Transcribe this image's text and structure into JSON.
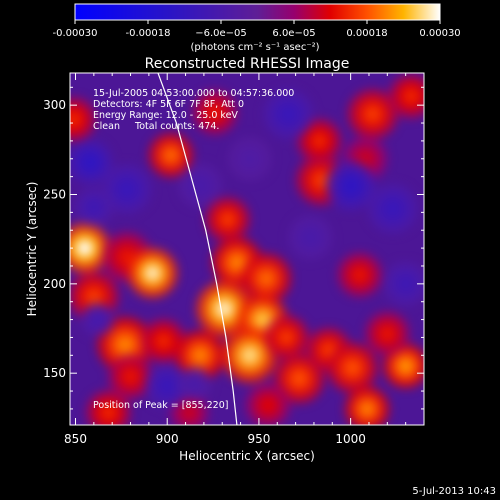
{
  "colorbar": {
    "ticks": [
      "-0.00030",
      "-0.00018",
      "−6.0e−05",
      "6.0e−05",
      "0.00018",
      "0.00030"
    ],
    "range": [
      -0.0003,
      0.0003
    ],
    "unit_label": "(photons cm⁻² s⁻¹ asec⁻²)"
  },
  "chart_data": {
    "type": "heatmap",
    "title": "Reconstructed RHESSI Image",
    "xlabel": "Heliocentric X (arcsec)",
    "ylabel": "Heliocentric Y (arcsec)",
    "xlim": [
      847,
      1040
    ],
    "ylim": [
      121,
      318
    ],
    "x_ticks": [
      850,
      900,
      950,
      1000
    ],
    "y_ticks": [
      150,
      200,
      250,
      300
    ],
    "annotations": [
      "15-Jul-2005 04:53:00.000 to 04:57:36.000",
      "Detectors: 4F 5F 6F 7F 8F, Att 0",
      "Energy Range: 12.0 - 25.0 keV",
      "Clean     Total counts: 474."
    ],
    "peak_label": "Position of Peak = [855,220]",
    "peak": [
      855,
      220
    ],
    "limb_curve": [
      [
        895,
        318
      ],
      [
        905,
        290
      ],
      [
        913,
        260
      ],
      [
        921,
        230
      ],
      [
        927,
        200
      ],
      [
        932,
        170
      ],
      [
        936,
        140
      ],
      [
        938,
        121
      ]
    ],
    "blobs": [
      {
        "x": 855,
        "y": 220,
        "a": 1.0,
        "s": 9
      },
      {
        "x": 860,
        "y": 193,
        "a": 0.55,
        "s": 9
      },
      {
        "x": 849,
        "y": 292,
        "a": 0.5,
        "s": 8
      },
      {
        "x": 878,
        "y": 215,
        "a": 0.45,
        "s": 9
      },
      {
        "x": 892,
        "y": 206,
        "a": 0.95,
        "s": 9
      },
      {
        "x": 877,
        "y": 166,
        "a": 0.7,
        "s": 10
      },
      {
        "x": 898,
        "y": 168,
        "a": 0.5,
        "s": 8
      },
      {
        "x": 902,
        "y": 272,
        "a": 0.65,
        "s": 8
      },
      {
        "x": 926,
        "y": 296,
        "a": 0.45,
        "s": 8
      },
      {
        "x": 933,
        "y": 236,
        "a": 0.55,
        "s": 8
      },
      {
        "x": 938,
        "y": 212,
        "a": 0.7,
        "s": 9
      },
      {
        "x": 954,
        "y": 203,
        "a": 0.65,
        "s": 9
      },
      {
        "x": 931,
        "y": 186,
        "a": 0.95,
        "s": 10
      },
      {
        "x": 952,
        "y": 180,
        "a": 0.85,
        "s": 9
      },
      {
        "x": 918,
        "y": 160,
        "a": 0.7,
        "s": 9
      },
      {
        "x": 945,
        "y": 160,
        "a": 0.9,
        "s": 10
      },
      {
        "x": 965,
        "y": 170,
        "a": 0.55,
        "s": 8
      },
      {
        "x": 972,
        "y": 147,
        "a": 0.6,
        "s": 9
      },
      {
        "x": 988,
        "y": 163,
        "a": 0.55,
        "s": 8
      },
      {
        "x": 1001,
        "y": 153,
        "a": 0.6,
        "s": 9
      },
      {
        "x": 1009,
        "y": 130,
        "a": 0.7,
        "s": 8
      },
      {
        "x": 1030,
        "y": 154,
        "a": 0.75,
        "s": 8
      },
      {
        "x": 1020,
        "y": 172,
        "a": 0.45,
        "s": 8
      },
      {
        "x": 1005,
        "y": 205,
        "a": 0.45,
        "s": 8
      },
      {
        "x": 984,
        "y": 258,
        "a": 0.55,
        "s": 9
      },
      {
        "x": 983,
        "y": 280,
        "a": 0.5,
        "s": 8
      },
      {
        "x": 1012,
        "y": 295,
        "a": 0.55,
        "s": 9
      },
      {
        "x": 1033,
        "y": 305,
        "a": 0.5,
        "s": 8
      },
      {
        "x": 1008,
        "y": 270,
        "a": 0.35,
        "s": 8
      },
      {
        "x": 868,
        "y": 128,
        "a": 0.5,
        "s": 8
      },
      {
        "x": 880,
        "y": 148,
        "a": 0.45,
        "s": 8
      },
      {
        "x": 912,
        "y": 128,
        "a": 0.35,
        "s": 7
      },
      {
        "x": 955,
        "y": 132,
        "a": 0.4,
        "s": 8
      },
      {
        "x": 878,
        "y": 253,
        "a": -0.35,
        "s": 9
      },
      {
        "x": 858,
        "y": 268,
        "a": -0.45,
        "s": 8
      },
      {
        "x": 860,
        "y": 243,
        "a": -0.3,
        "s": 7
      },
      {
        "x": 918,
        "y": 255,
        "a": -0.2,
        "s": 8
      },
      {
        "x": 966,
        "y": 295,
        "a": -0.35,
        "s": 9
      },
      {
        "x": 1000,
        "y": 255,
        "a": -0.45,
        "s": 9
      },
      {
        "x": 1023,
        "y": 242,
        "a": -0.35,
        "s": 9
      },
      {
        "x": 1030,
        "y": 200,
        "a": -0.3,
        "s": 8
      },
      {
        "x": 900,
        "y": 143,
        "a": -0.35,
        "s": 8
      },
      {
        "x": 915,
        "y": 144,
        "a": -0.2,
        "s": 6
      },
      {
        "x": 862,
        "y": 180,
        "a": -0.25,
        "s": 6
      },
      {
        "x": 978,
        "y": 226,
        "a": -0.2,
        "s": 8
      },
      {
        "x": 945,
        "y": 270,
        "a": -0.15,
        "s": 8
      }
    ]
  },
  "footer": {
    "timestamp": "5-Jul-2013 10:43"
  }
}
